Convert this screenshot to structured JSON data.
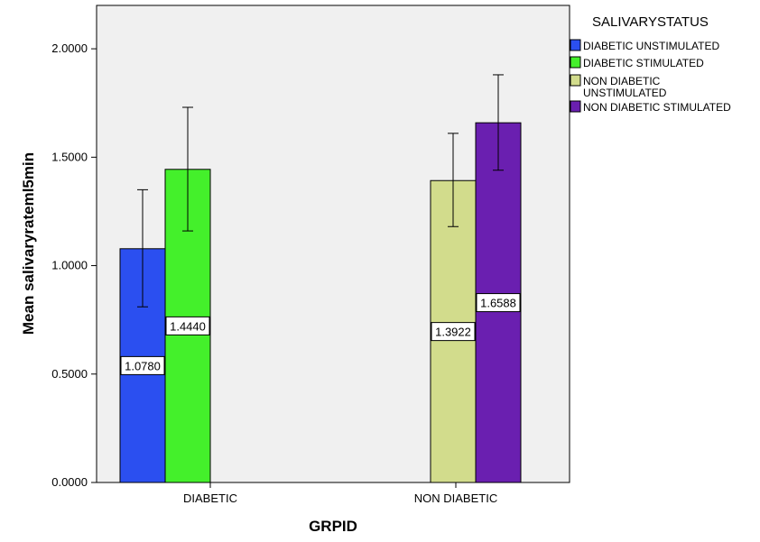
{
  "chart_data": {
    "type": "bar",
    "xlabel": "GRPID",
    "ylabel": "Mean salivaryrateml5min",
    "categories": [
      "DIABETIC",
      "NON DIABETIC"
    ],
    "ylim": [
      0,
      2.2
    ],
    "yticks": [
      "0.0000",
      "0.5000",
      "1.0000",
      "1.5000",
      "2.0000"
    ],
    "legend": {
      "title": "SALIVARYSTATUS",
      "placement": "right"
    },
    "series": [
      {
        "name": "DIABETIC UNSTIMULATED",
        "legend_lines": [
          "DIABETIC UNSTIMULATED"
        ],
        "color": "#2b4ff0",
        "values": [
          1.078,
          null
        ],
        "labels": [
          "1.0780",
          ""
        ],
        "err_low": [
          0.81,
          null
        ],
        "err_high": [
          1.35,
          null
        ]
      },
      {
        "name": "DIABETIC STIMULATED",
        "legend_lines": [
          "DIABETIC STIMULATED"
        ],
        "color": "#44f02b",
        "values": [
          1.444,
          null
        ],
        "labels": [
          "1.4440",
          ""
        ],
        "err_low": [
          1.16,
          null
        ],
        "err_high": [
          1.73,
          null
        ]
      },
      {
        "name": "NON DIABETIC UNSTIMULATED",
        "legend_lines": [
          "NON DIABETIC",
          "UNSTIMULATED"
        ],
        "color": "#d2dc8c",
        "values": [
          null,
          1.3922
        ],
        "labels": [
          "",
          "1.3922"
        ],
        "err_low": [
          null,
          1.18
        ],
        "err_high": [
          null,
          1.61
        ]
      },
      {
        "name": "NON DIABETIC STIMULATED",
        "legend_lines": [
          "NON DIABETIC STIMULATED"
        ],
        "color": "#6a1fb0",
        "values": [
          null,
          1.6588
        ],
        "labels": [
          "",
          "1.6588"
        ],
        "err_low": [
          null,
          1.44
        ],
        "err_high": [
          null,
          1.88
        ]
      }
    ]
  }
}
